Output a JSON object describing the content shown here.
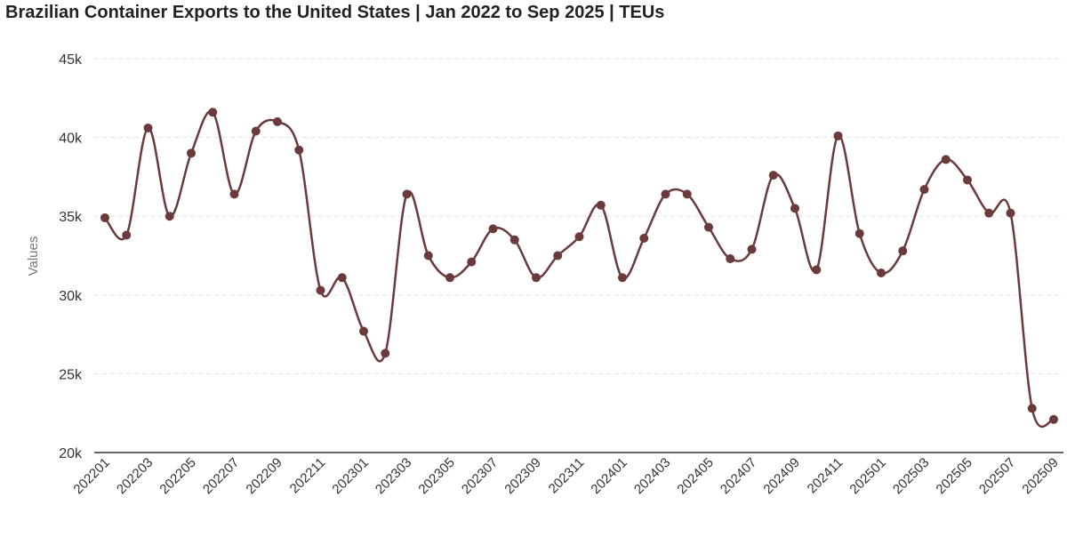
{
  "chart_data": {
    "type": "line",
    "title": "Brazilian Container Exports to the United States | Jan 2022 to Sep 2025 | TEUs",
    "xlabel": "",
    "ylabel": "Values",
    "ylim": [
      20000,
      45000
    ],
    "y_ticks": [
      {
        "value": 20000,
        "label": "20k"
      },
      {
        "value": 25000,
        "label": "25k"
      },
      {
        "value": 30000,
        "label": "30k"
      },
      {
        "value": 35000,
        "label": "35k"
      },
      {
        "value": 40000,
        "label": "40k"
      },
      {
        "value": 45000,
        "label": "45k"
      }
    ],
    "x_tick_labels": [
      "202201",
      "202203",
      "202205",
      "202207",
      "202209",
      "202211",
      "202301",
      "202303",
      "202305",
      "202307",
      "202309",
      "202311",
      "202401",
      "202403",
      "202405",
      "202407",
      "202409",
      "202411",
      "202501",
      "202503",
      "202505",
      "202507",
      "202509"
    ],
    "grid": true,
    "line_color": "#6b3a3a",
    "grid_color": "#e3e3e3",
    "axis_color": "#333333",
    "series": [
      {
        "name": "Values",
        "x": [
          "202201",
          "202202",
          "202203",
          "202204",
          "202205",
          "202206",
          "202207",
          "202208",
          "202209",
          "202210",
          "202211",
          "202212",
          "202301",
          "202302",
          "202303",
          "202304",
          "202305",
          "202306",
          "202307",
          "202308",
          "202309",
          "202310",
          "202311",
          "202312",
          "202401",
          "202402",
          "202403",
          "202404",
          "202405",
          "202406",
          "202407",
          "202408",
          "202409",
          "202410",
          "202411",
          "202412",
          "202501",
          "202502",
          "202503",
          "202504",
          "202505",
          "202506",
          "202507",
          "202508",
          "202509"
        ],
        "values": [
          34900,
          33800,
          40600,
          35000,
          39000,
          41600,
          36400,
          40400,
          41000,
          39200,
          30300,
          31100,
          27700,
          26300,
          36400,
          32500,
          31100,
          32100,
          34200,
          33500,
          31100,
          32500,
          33700,
          35700,
          31100,
          33600,
          36400,
          36400,
          34300,
          32300,
          32900,
          37600,
          35500,
          31600,
          40100,
          33900,
          31400,
          32800,
          36700,
          38600,
          37300,
          35200,
          35200,
          22800,
          22100
        ]
      }
    ]
  }
}
